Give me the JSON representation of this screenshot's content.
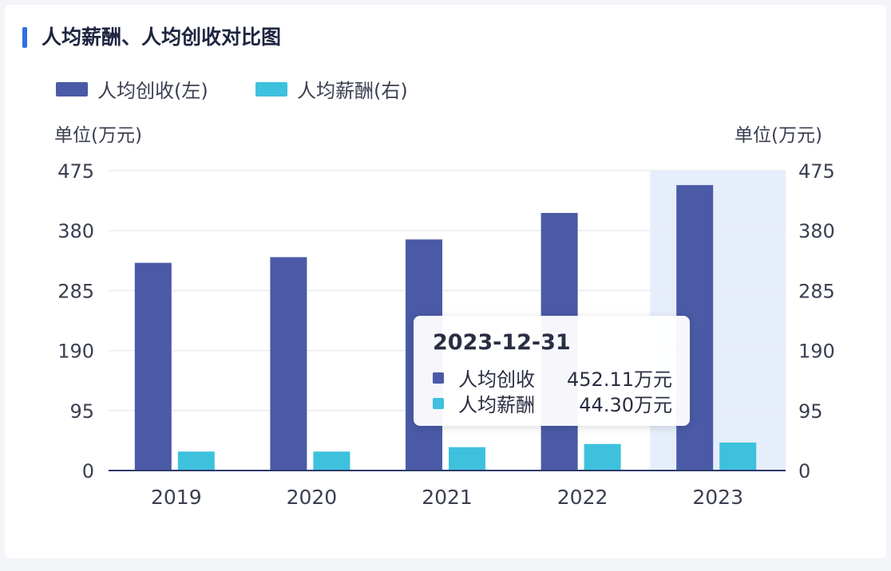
{
  "title": "人均薪酬、人均创收对比图",
  "legend": [
    {
      "label": "人均创收(左)",
      "color": "#4a5aa6"
    },
    {
      "label": "人均薪酬(右)",
      "color": "#3ec1dd"
    }
  ],
  "unit_left": "单位(万元)",
  "unit_right": "单位(万元)",
  "chart_data": {
    "type": "bar",
    "categories": [
      "2019",
      "2020",
      "2021",
      "2022",
      "2023"
    ],
    "series": [
      {
        "name": "人均创收",
        "axis": "left",
        "color": "#4a5aa6",
        "values": [
          329,
          338,
          366,
          408,
          452.11
        ]
      },
      {
        "name": "人均薪酬",
        "axis": "right",
        "color": "#3ec1dd",
        "values": [
          30,
          30,
          37,
          42,
          44.3
        ]
      }
    ],
    "y_left": {
      "min": 0,
      "max": 475,
      "ticks": [
        "0",
        "95",
        "190",
        "285",
        "380",
        "475"
      ]
    },
    "y_right": {
      "min": 0,
      "max": 475,
      "ticks": [
        "0",
        "95",
        "190",
        "285",
        "380",
        "475"
      ]
    },
    "highlighted_category": "2023",
    "grid": true
  },
  "tooltip": {
    "date": "2023-12-31",
    "rows": [
      {
        "name": "人均创收",
        "value": "452.11万元",
        "color": "#4a5aa6"
      },
      {
        "name": "人均薪酬",
        "value": "44.30万元",
        "color": "#3ec1dd"
      }
    ]
  }
}
